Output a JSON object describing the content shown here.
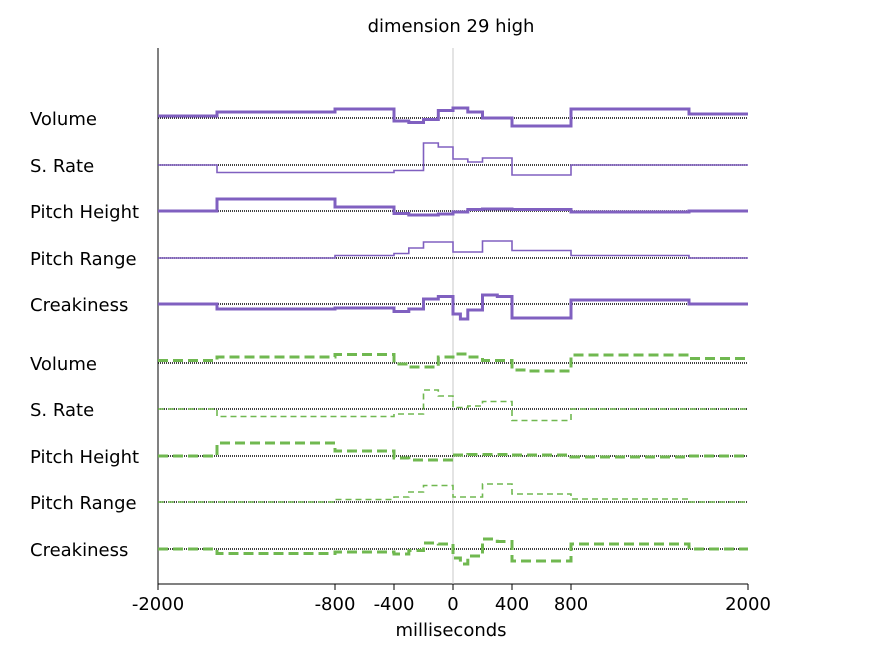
{
  "chart_data": {
    "type": "line",
    "title": "dimension 29 high",
    "xlabel": "milliseconds",
    "ylabel": "",
    "xlim": [
      -2000,
      2000
    ],
    "x_ticks": [
      -2000,
      -800,
      -400,
      0,
      400,
      800,
      2000
    ],
    "x_tick_labels": [
      "-2000",
      "-800",
      "-400",
      "0",
      "400",
      "800",
      "2000"
    ],
    "zero_line": true,
    "grid": false,
    "colors": {
      "purple": "#8060c0",
      "green": "#70b850",
      "baseline": "#000000",
      "zero": "#c8c8c8"
    },
    "series": [
      {
        "name": "Volume",
        "group": "purple",
        "style": "thick-solid",
        "points": [
          [
            -2000,
            0.4
          ],
          [
            -1600,
            0.4
          ],
          [
            -1600,
            1.2
          ],
          [
            -800,
            1.2
          ],
          [
            -800,
            1.8
          ],
          [
            -400,
            1.8
          ],
          [
            -400,
            -0.6
          ],
          [
            -300,
            -0.6
          ],
          [
            -300,
            -0.9
          ],
          [
            -200,
            -0.9
          ],
          [
            -200,
            -0.3
          ],
          [
            -100,
            -0.3
          ],
          [
            -100,
            1.5
          ],
          [
            0,
            1.5
          ],
          [
            0,
            2.0
          ],
          [
            100,
            2.0
          ],
          [
            100,
            1.2
          ],
          [
            200,
            1.2
          ],
          [
            200,
            0
          ],
          [
            400,
            0
          ],
          [
            400,
            -1.6
          ],
          [
            800,
            -1.6
          ],
          [
            800,
            1.8
          ],
          [
            1600,
            1.8
          ],
          [
            1600,
            0.8
          ],
          [
            2000,
            0.8
          ]
        ]
      },
      {
        "name": "S. Rate",
        "group": "purple",
        "style": "thin-solid",
        "points": [
          [
            -2000,
            0
          ],
          [
            -1600,
            0
          ],
          [
            -1600,
            -1.5
          ],
          [
            -400,
            -1.5
          ],
          [
            -400,
            -1.1
          ],
          [
            -200,
            -1.1
          ],
          [
            -200,
            4.4
          ],
          [
            -100,
            4.4
          ],
          [
            -100,
            3.6
          ],
          [
            0,
            3.6
          ],
          [
            0,
            1.2
          ],
          [
            100,
            1.2
          ],
          [
            100,
            0.6
          ],
          [
            200,
            0.6
          ],
          [
            200,
            1.4
          ],
          [
            400,
            1.4
          ],
          [
            400,
            -2.0
          ],
          [
            800,
            -2.0
          ],
          [
            800,
            0
          ],
          [
            2000,
            0
          ]
        ]
      },
      {
        "name": "Pitch Height",
        "group": "purple",
        "style": "thick-solid",
        "points": [
          [
            -2000,
            0
          ],
          [
            -1600,
            0
          ],
          [
            -1600,
            2.4
          ],
          [
            -800,
            2.4
          ],
          [
            -800,
            0.8
          ],
          [
            -400,
            0.8
          ],
          [
            -400,
            -0.5
          ],
          [
            -300,
            -0.5
          ],
          [
            -300,
            -0.8
          ],
          [
            -100,
            -0.8
          ],
          [
            -100,
            -0.6
          ],
          [
            0,
            -0.6
          ],
          [
            0,
            -0.2
          ],
          [
            100,
            -0.2
          ],
          [
            100,
            0.3
          ],
          [
            200,
            0.3
          ],
          [
            200,
            0.4
          ],
          [
            400,
            0.4
          ],
          [
            400,
            0.3
          ],
          [
            800,
            0.3
          ],
          [
            800,
            -0.2
          ],
          [
            1600,
            -0.2
          ],
          [
            1600,
            0
          ],
          [
            2000,
            0
          ]
        ]
      },
      {
        "name": "Pitch Range",
        "group": "purple",
        "style": "thin-solid",
        "points": [
          [
            -2000,
            0
          ],
          [
            -800,
            0
          ],
          [
            -800,
            0.5
          ],
          [
            -400,
            0.5
          ],
          [
            -400,
            0.9
          ],
          [
            -300,
            0.9
          ],
          [
            -300,
            2.0
          ],
          [
            -200,
            2.0
          ],
          [
            -200,
            3.2
          ],
          [
            0,
            3.2
          ],
          [
            0,
            1.2
          ],
          [
            200,
            1.2
          ],
          [
            200,
            3.4
          ],
          [
            400,
            3.4
          ],
          [
            400,
            1.5
          ],
          [
            800,
            1.5
          ],
          [
            800,
            0.5
          ],
          [
            1600,
            0.5
          ],
          [
            1600,
            0
          ],
          [
            2000,
            0
          ]
        ]
      },
      {
        "name": "Creakiness",
        "group": "purple",
        "style": "thick-solid",
        "points": [
          [
            -2000,
            0
          ],
          [
            -1600,
            0
          ],
          [
            -1600,
            -1.0
          ],
          [
            -800,
            -1.0
          ],
          [
            -800,
            -0.8
          ],
          [
            -400,
            -0.8
          ],
          [
            -400,
            -1.5
          ],
          [
            -300,
            -1.5
          ],
          [
            -300,
            -1.0
          ],
          [
            -200,
            -1.0
          ],
          [
            -200,
            1.0
          ],
          [
            -100,
            1.0
          ],
          [
            -100,
            1.5
          ],
          [
            0,
            1.5
          ],
          [
            0,
            -2.0
          ],
          [
            50,
            -2.0
          ],
          [
            50,
            -3.0
          ],
          [
            100,
            -3.0
          ],
          [
            100,
            -1.2
          ],
          [
            200,
            -1.2
          ],
          [
            200,
            1.8
          ],
          [
            300,
            1.8
          ],
          [
            300,
            1.5
          ],
          [
            400,
            1.5
          ],
          [
            400,
            -2.8
          ],
          [
            800,
            -2.8
          ],
          [
            800,
            0.8
          ],
          [
            1600,
            0.8
          ],
          [
            1600,
            0
          ],
          [
            2000,
            0
          ]
        ]
      },
      {
        "name": "Volume",
        "group": "green",
        "style": "thick-dashed",
        "points": [
          [
            -2000,
            0.5
          ],
          [
            -1600,
            0.5
          ],
          [
            -1600,
            1.2
          ],
          [
            -800,
            1.2
          ],
          [
            -800,
            1.7
          ],
          [
            -400,
            1.7
          ],
          [
            -400,
            -0.2
          ],
          [
            -300,
            -0.2
          ],
          [
            -300,
            -0.8
          ],
          [
            -100,
            -0.8
          ],
          [
            -100,
            1.2
          ],
          [
            0,
            1.2
          ],
          [
            0,
            1.8
          ],
          [
            100,
            1.8
          ],
          [
            100,
            1.2
          ],
          [
            200,
            1.2
          ],
          [
            200,
            0.5
          ],
          [
            400,
            0.5
          ],
          [
            400,
            -1.4
          ],
          [
            500,
            -1.4
          ],
          [
            500,
            -1.6
          ],
          [
            800,
            -1.6
          ],
          [
            800,
            1.6
          ],
          [
            1600,
            1.6
          ],
          [
            1600,
            0.9
          ],
          [
            2000,
            0.9
          ]
        ]
      },
      {
        "name": "S. Rate",
        "group": "green",
        "style": "thin-dashed",
        "points": [
          [
            -2000,
            0
          ],
          [
            -1600,
            0
          ],
          [
            -1600,
            -1.5
          ],
          [
            -400,
            -1.5
          ],
          [
            -400,
            -1.0
          ],
          [
            -200,
            -1.0
          ],
          [
            -200,
            3.8
          ],
          [
            -100,
            3.8
          ],
          [
            -100,
            2.6
          ],
          [
            0,
            2.6
          ],
          [
            0,
            0.3
          ],
          [
            100,
            0.3
          ],
          [
            100,
            0.6
          ],
          [
            200,
            0.6
          ],
          [
            200,
            1.5
          ],
          [
            400,
            1.5
          ],
          [
            400,
            -2.3
          ],
          [
            800,
            -2.3
          ],
          [
            800,
            0
          ],
          [
            2000,
            0
          ]
        ]
      },
      {
        "name": "Pitch Height",
        "group": "green",
        "style": "thick-dashed",
        "points": [
          [
            -2000,
            0
          ],
          [
            -1600,
            0
          ],
          [
            -1600,
            2.6
          ],
          [
            -800,
            2.6
          ],
          [
            -800,
            1.0
          ],
          [
            -400,
            1.0
          ],
          [
            -400,
            -0.4
          ],
          [
            -300,
            -0.4
          ],
          [
            -300,
            -0.8
          ],
          [
            0,
            -0.8
          ],
          [
            0,
            0.2
          ],
          [
            100,
            0.2
          ],
          [
            100,
            0.3
          ],
          [
            400,
            0.3
          ],
          [
            400,
            0.2
          ],
          [
            800,
            0.2
          ],
          [
            800,
            -0.2
          ],
          [
            1600,
            -0.2
          ],
          [
            1600,
            0
          ],
          [
            2000,
            0
          ]
        ]
      },
      {
        "name": "Pitch Range",
        "group": "green",
        "style": "thin-dashed",
        "points": [
          [
            -2000,
            0
          ],
          [
            -800,
            0
          ],
          [
            -800,
            0.5
          ],
          [
            -400,
            0.5
          ],
          [
            -400,
            1.0
          ],
          [
            -300,
            1.0
          ],
          [
            -300,
            2.0
          ],
          [
            -200,
            2.0
          ],
          [
            -200,
            3.3
          ],
          [
            0,
            3.3
          ],
          [
            0,
            1.0
          ],
          [
            200,
            1.0
          ],
          [
            200,
            3.6
          ],
          [
            400,
            3.6
          ],
          [
            400,
            1.6
          ],
          [
            800,
            1.6
          ],
          [
            800,
            0.6
          ],
          [
            1600,
            0.6
          ],
          [
            1600,
            0
          ],
          [
            2000,
            0
          ]
        ]
      },
      {
        "name": "Creakiness",
        "group": "green",
        "style": "thick-dashed",
        "points": [
          [
            -2000,
            0
          ],
          [
            -1600,
            0
          ],
          [
            -1600,
            -0.9
          ],
          [
            -800,
            -0.9
          ],
          [
            -800,
            -0.6
          ],
          [
            -400,
            -0.6
          ],
          [
            -400,
            -1.0
          ],
          [
            -300,
            -1.0
          ],
          [
            -300,
            -0.3
          ],
          [
            -200,
            -0.3
          ],
          [
            -200,
            1.2
          ],
          [
            -100,
            1.2
          ],
          [
            -100,
            1.0
          ],
          [
            0,
            1.0
          ],
          [
            0,
            -1.8
          ],
          [
            50,
            -1.8
          ],
          [
            50,
            -3.0
          ],
          [
            100,
            -3.0
          ],
          [
            100,
            -1.4
          ],
          [
            200,
            -1.4
          ],
          [
            200,
            2.0
          ],
          [
            300,
            2.0
          ],
          [
            300,
            1.5
          ],
          [
            400,
            1.5
          ],
          [
            400,
            -2.4
          ],
          [
            800,
            -2.4
          ],
          [
            800,
            1.0
          ],
          [
            1600,
            1.0
          ],
          [
            1600,
            0
          ],
          [
            2000,
            0
          ]
        ]
      }
    ]
  }
}
